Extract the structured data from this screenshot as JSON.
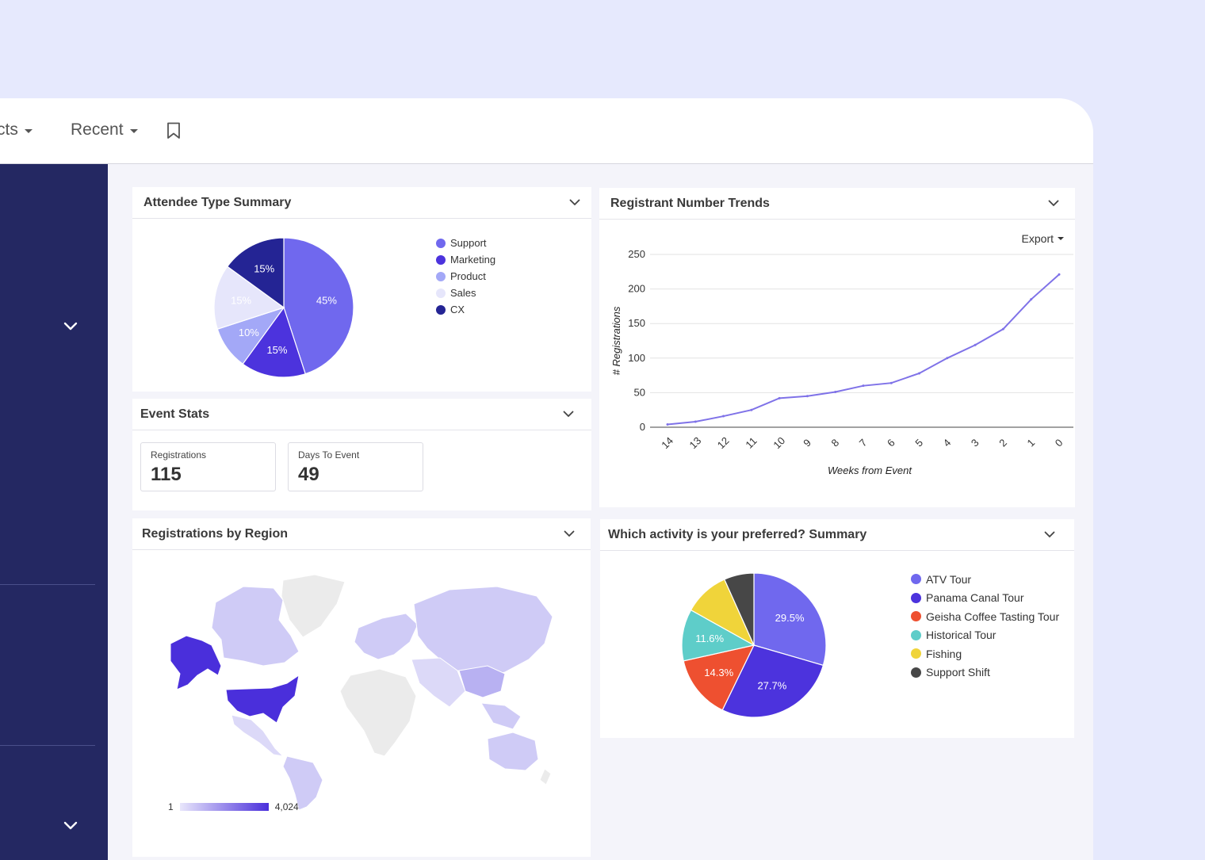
{
  "nav": {
    "items": [
      {
        "label": "cts",
        "caret": true
      },
      {
        "label": "Recent",
        "caret": true
      }
    ],
    "bookmark_icon": "bookmark-icon"
  },
  "cards": {
    "attendee": {
      "title": "Attendee Type Summary",
      "legend": [
        {
          "label": "Support",
          "color": "#7068ee"
        },
        {
          "label": "Marketing",
          "color": "#4c33dd"
        },
        {
          "label": "Product",
          "color": "#a3a8f7"
        },
        {
          "label": "Sales",
          "color": "#e6e6fb"
        },
        {
          "label": "CX",
          "color": "#242494"
        }
      ]
    },
    "event_stats": {
      "title": "Event Stats",
      "stats": [
        {
          "label": "Registrations",
          "value": "115"
        },
        {
          "label": "Days To Event",
          "value": "49"
        }
      ]
    },
    "trends": {
      "title": "Registrant Number Trends",
      "export_label": "Export"
    },
    "region": {
      "title": "Registrations by Region",
      "legend_min": "1",
      "legend_max": "4,024"
    },
    "activity": {
      "title": "Which activity is your preferred? Summary",
      "legend": [
        {
          "label": "ATV Tour",
          "color": "#7068ee"
        },
        {
          "label": "Panama Canal Tour",
          "color": "#4c33dd"
        },
        {
          "label": "Geisha Coffee Tasting Tour",
          "color": "#ee5030"
        },
        {
          "label": "Historical Tour",
          "color": "#5ecdc9"
        },
        {
          "label": "Fishing",
          "color": "#f0d43a"
        },
        {
          "label": "Support Shift",
          "color": "#474747"
        }
      ]
    }
  },
  "chart_data": [
    {
      "type": "pie",
      "categories": [
        "Support",
        "Marketing",
        "Product",
        "Sales",
        "CX"
      ],
      "values": [
        45,
        15,
        10,
        15,
        15
      ],
      "labels": [
        "45%",
        "15%",
        "10%",
        "15%",
        "15%"
      ],
      "colors": [
        "#7068ee",
        "#4c33dd",
        "#a3a8f7",
        "#e6e6fb",
        "#242494"
      ],
      "label_colors": [
        "#ffffff",
        "#ffffff",
        "#333333",
        "#333333",
        "#ffffff"
      ]
    },
    {
      "type": "line",
      "x": [
        "14",
        "13",
        "12",
        "11",
        "10",
        "9",
        "8",
        "7",
        "6",
        "5",
        "4",
        "3",
        "2",
        "1",
        "0"
      ],
      "series": [
        {
          "values": [
            4,
            8,
            16,
            25,
            42,
            45,
            51,
            60,
            64,
            78,
            100,
            119,
            142,
            185,
            221
          ],
          "color": "#7f72e8"
        }
      ],
      "xlabel": "Weeks from Event",
      "ylabel": "# Registrations",
      "yticks": [
        "0",
        "50",
        "100",
        "150",
        "200",
        "250"
      ],
      "ylim": [
        0,
        250
      ],
      "grid": true
    },
    {
      "type": "pie",
      "categories": [
        "ATV Tour",
        "Panama Canal Tour",
        "Geisha Coffee Tasting Tour",
        "Historical Tour",
        "Fishing",
        "Support Shift"
      ],
      "values": [
        29.5,
        27.7,
        14.3,
        11.6,
        10.2,
        6.7
      ],
      "labels": [
        "29.5%",
        "27.7%",
        "14.3%",
        "11.6%",
        "",
        ""
      ],
      "colors": [
        "#7068ee",
        "#4c33dd",
        "#ee5030",
        "#5ecdc9",
        "#f0d43a",
        "#474747"
      ]
    }
  ]
}
